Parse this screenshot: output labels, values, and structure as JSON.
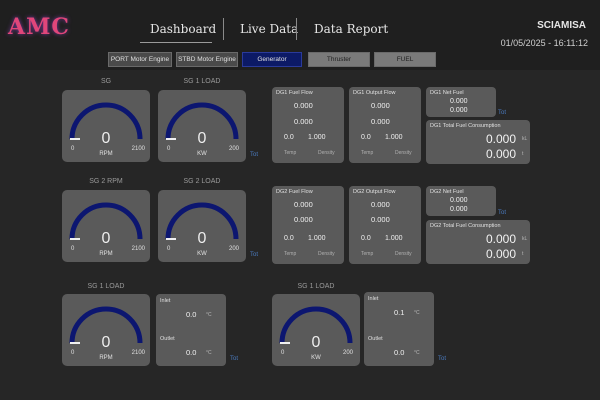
{
  "app": {
    "logo": "AMC",
    "brand": "SCIAMISA",
    "clock": "01/05/2025 - 16:11:12",
    "nav": [
      "Dashboard",
      "Live Data",
      "Data Report"
    ],
    "buttons": [
      "PORT Motor Engine",
      "STBD Motor Engine",
      "Generator",
      "Thruster",
      "FUEL"
    ]
  },
  "gauges": {
    "g1": {
      "title": "SG",
      "value": "0",
      "min": "0",
      "max": "2100",
      "unit": "RPM"
    },
    "g2": {
      "title": "SG 1 LOAD",
      "value": "0",
      "min": "0",
      "max": "200",
      "unit": "KW"
    },
    "g3": {
      "title": "SG 2 RPM",
      "value": "0",
      "min": "0",
      "max": "2100",
      "unit": "RPM"
    },
    "g4": {
      "title": "SG 2 LOAD",
      "value": "0",
      "min": "0",
      "max": "200",
      "unit": "KW"
    },
    "g5": {
      "title": "SG 1 LOAD",
      "value": "0",
      "min": "0",
      "max": "2100",
      "unit": "RPM"
    },
    "g6": {
      "title": "SG 1 LOAD",
      "value": "0",
      "min": "0",
      "max": "200",
      "unit": "KW"
    }
  },
  "badges": {
    "b1": "Tot",
    "b2": "Tot",
    "b3": "Tot",
    "b4": "Tot",
    "b5": "Tot",
    "b6": "Tot"
  },
  "row1": {
    "fuel_in": {
      "title": "DG1 Fuel Flow",
      "v1": "0.000",
      "v2": "0.000",
      "l1": "0.0",
      "l2": "1.000",
      "f1": "Temp",
      "f2": "Density"
    },
    "fuel_out": {
      "title": "DG1 Output Flow",
      "v1": "0.000",
      "v2": "0.000",
      "l1": "0.0",
      "l2": "1.000",
      "f1": "Temp",
      "f2": "Density"
    },
    "net": {
      "title": "DG1 Net Fuel",
      "v1": "0.000",
      "v2": "0.000"
    },
    "total": {
      "title": "DG1 Total Fuel Consumption",
      "v1": "0.000",
      "v2": "0.000",
      "u1": "kL",
      "u2": "t"
    }
  },
  "row2": {
    "fuel_in": {
      "title": "DG2 Fuel Flow",
      "v1": "0.000",
      "v2": "0.000",
      "l1": "0.0",
      "l2": "1.000",
      "f1": "Temp",
      "f2": "Density"
    },
    "fuel_out": {
      "title": "DG2 Output Flow",
      "v1": "0.000",
      "v2": "0.000",
      "l1": "0.0",
      "l2": "1.000",
      "f1": "Temp",
      "f2": "Density"
    },
    "net": {
      "title": "DG2 Net Fuel",
      "v1": "0.000",
      "v2": "0.000"
    },
    "total": {
      "title": "DG2 Total Fuel Consumption",
      "v1": "0.000",
      "v2": "0.000",
      "u1": "kL",
      "u2": "t"
    }
  },
  "row3": {
    "temp1": {
      "t1": "Inlet",
      "v1": "0.0",
      "u1": "°C",
      "t2": "Outlet",
      "v2": "0.0",
      "u2": "°C"
    },
    "temp2": {
      "t1": "Inlet",
      "v1": "0.1",
      "u1": "°C",
      "t2": "Outlet",
      "v2": "0.0",
      "u2": "°C"
    }
  },
  "colors": {
    "gauge_arc": "#0c1670",
    "accent": "#4a7abf",
    "card": "#5a5a5a",
    "background": "#262626"
  }
}
